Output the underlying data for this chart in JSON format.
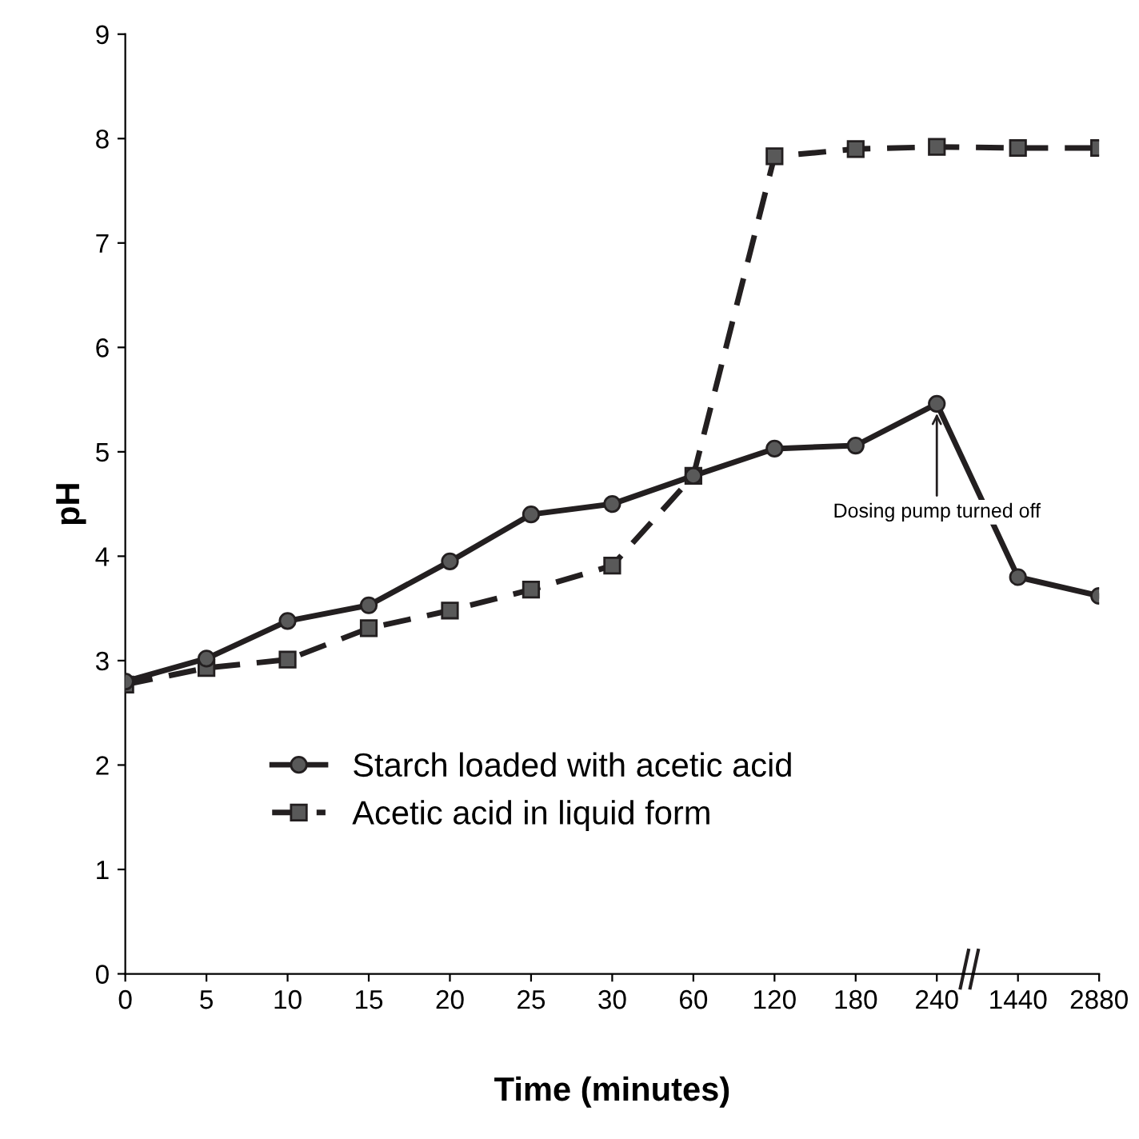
{
  "chart_data": {
    "type": "line",
    "xlabel": "Time (minutes)",
    "ylabel": "pH",
    "categories": [
      "0",
      "5",
      "10",
      "15",
      "20",
      "25",
      "30",
      "60",
      "120",
      "180",
      "240",
      "1440",
      "2880"
    ],
    "series": [
      {
        "name": "Starch loaded with acetic acid",
        "color": "#231f20",
        "marker": "circle",
        "line_style": "solid",
        "values": [
          2.8,
          3.02,
          3.38,
          3.53,
          3.95,
          4.4,
          4.5,
          4.77,
          5.03,
          5.06,
          5.46,
          3.8,
          3.62
        ]
      },
      {
        "name": "Acetic acid in liquid form",
        "color": "#231f20",
        "marker": "square",
        "line_style": "dashed",
        "values": [
          2.77,
          2.93,
          3.01,
          3.31,
          3.48,
          3.68,
          3.91,
          4.77,
          7.83,
          7.9,
          7.92,
          7.91,
          7.91
        ]
      }
    ],
    "ylim": [
      0,
      9
    ],
    "yticks": [
      0,
      1,
      2,
      3,
      4,
      5,
      6,
      7,
      8,
      9
    ],
    "grid": false,
    "legend": "lower left",
    "annotations": [
      {
        "text": "Dosing pump turned off",
        "x": "240",
        "y": 5.46
      }
    ]
  }
}
